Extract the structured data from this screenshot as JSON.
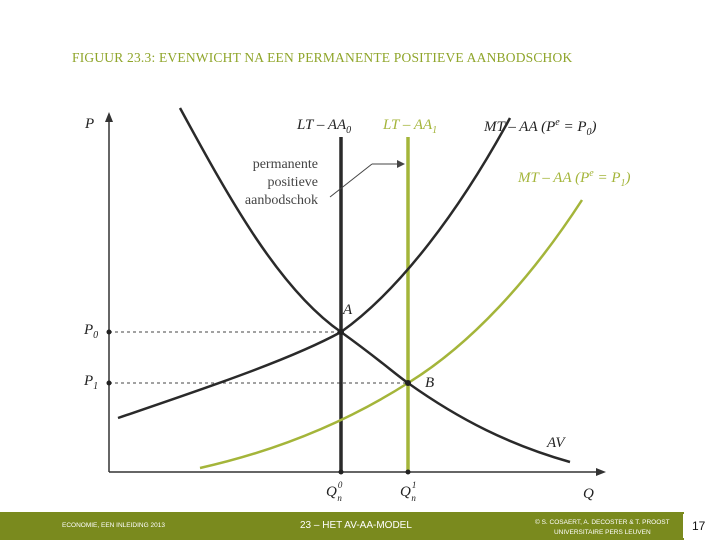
{
  "title": "FIGUUR 23.3: EVENWICHT NA EEN PERMANENTE POSITIEVE AANBODSCHOK",
  "colors": {
    "black_curve": "#222222",
    "green_curve": "#a4b53a",
    "footer_bg": "#7a8a1e",
    "title": "#8fa52a"
  },
  "axes": {
    "y_label": "P",
    "x_label": "Q"
  },
  "labels": {
    "lt_aa0": "LT – AA",
    "lt_aa0_sub": "0",
    "lt_aa1": "LT – AA",
    "lt_aa1_sub": "1",
    "mt_aa0": "MT – AA (P",
    "mt_aa0_tail": " = P",
    "mt_aa0_sub": "0",
    "mt_aa0_close": ")",
    "mt_aa1": "MT – AA (P",
    "mt_aa1_tail": " = P",
    "mt_aa1_sub": "1",
    "mt_aa1_close": ")",
    "exp_sup": "e",
    "av": "AV",
    "point_a": "A",
    "point_b": "B",
    "p0": "P",
    "p0_sub": "0",
    "p1": "P",
    "p1_sub": "1",
    "qn0": "Q",
    "qn0_sub": "n",
    "qn0_sup": "0",
    "qn1": "Q",
    "qn1_sub": "n",
    "qn1_sup": "1"
  },
  "annotation": [
    "permanente",
    "positieve",
    "aanbodschok"
  ],
  "footer": {
    "left": "ECONOMIE, EEN INLEIDING 2013",
    "center": "23 – HET AV-AA-MODEL",
    "right_line1": "© S. COSAERT, A. DECOSTER & T. PROOST",
    "right_line2": "UNIVERSITAIRE PERS LEUVEN",
    "page": "17"
  }
}
